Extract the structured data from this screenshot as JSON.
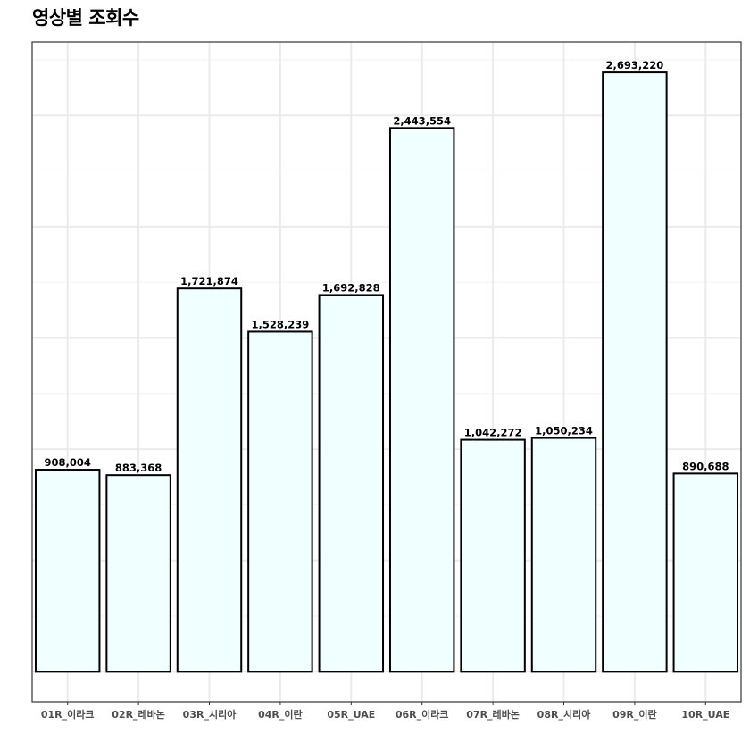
{
  "chart_data": {
    "type": "bar",
    "title": "영상별 조회수",
    "categories": [
      "01R_이라크",
      "02R_레바논",
      "03R_시리아",
      "04R_이란",
      "05R_UAE",
      "06R_이라크",
      "07R_레바논",
      "08R_시리아",
      "09R_이란",
      "10R_UAE"
    ],
    "values": [
      908004,
      883368,
      1721874,
      1528239,
      1692828,
      2443554,
      1042272,
      1050234,
      2693220,
      890688
    ],
    "value_labels": [
      "908,004",
      "883,368",
      "1,721,874",
      "1,528,239",
      "1,692,828",
      "2,443,554",
      "1,042,272",
      "1,050,234",
      "2,693,220",
      "890,688"
    ],
    "ylim": [
      -135000,
      2830000
    ],
    "y_gridlines": [
      0,
      500000,
      1000000,
      1500000,
      2000000,
      2500000
    ],
    "y_tick_labels_visible": false,
    "grid": true,
    "bar_fill": "#f0ffff",
    "bar_stroke": "#000000",
    "xlabel": "",
    "ylabel": ""
  }
}
